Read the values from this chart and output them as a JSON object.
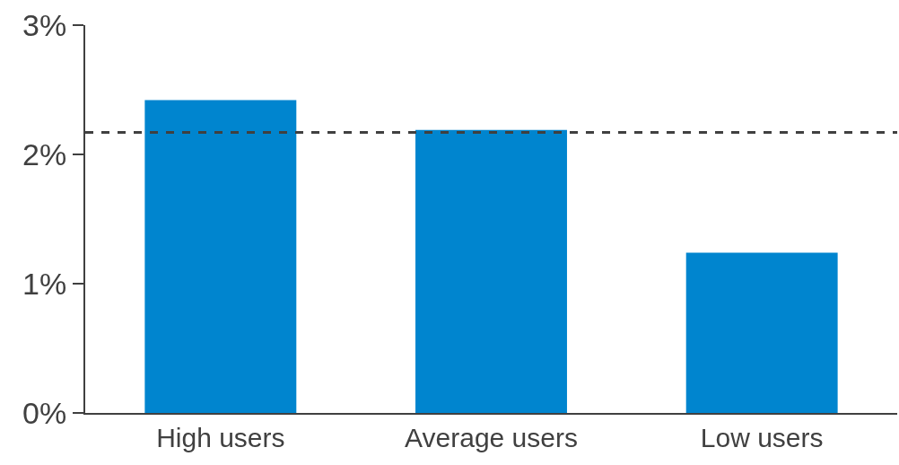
{
  "chart_data": {
    "type": "bar",
    "categories": [
      "High users",
      "Average users",
      "Low users"
    ],
    "values": [
      2.42,
      2.19,
      1.24
    ],
    "color": "#0085cf",
    "ylim": [
      0,
      3
    ],
    "yticks": [
      {
        "value": 0,
        "label": "0%"
      },
      {
        "value": 1,
        "label": "1%"
      },
      {
        "value": 2,
        "label": "2%"
      },
      {
        "value": 3,
        "label": "3%"
      }
    ],
    "grid": false,
    "ref_lines": [
      {
        "axis": "y",
        "value": 2.17,
        "color": "#404040",
        "line_style": "dashed"
      }
    ]
  }
}
